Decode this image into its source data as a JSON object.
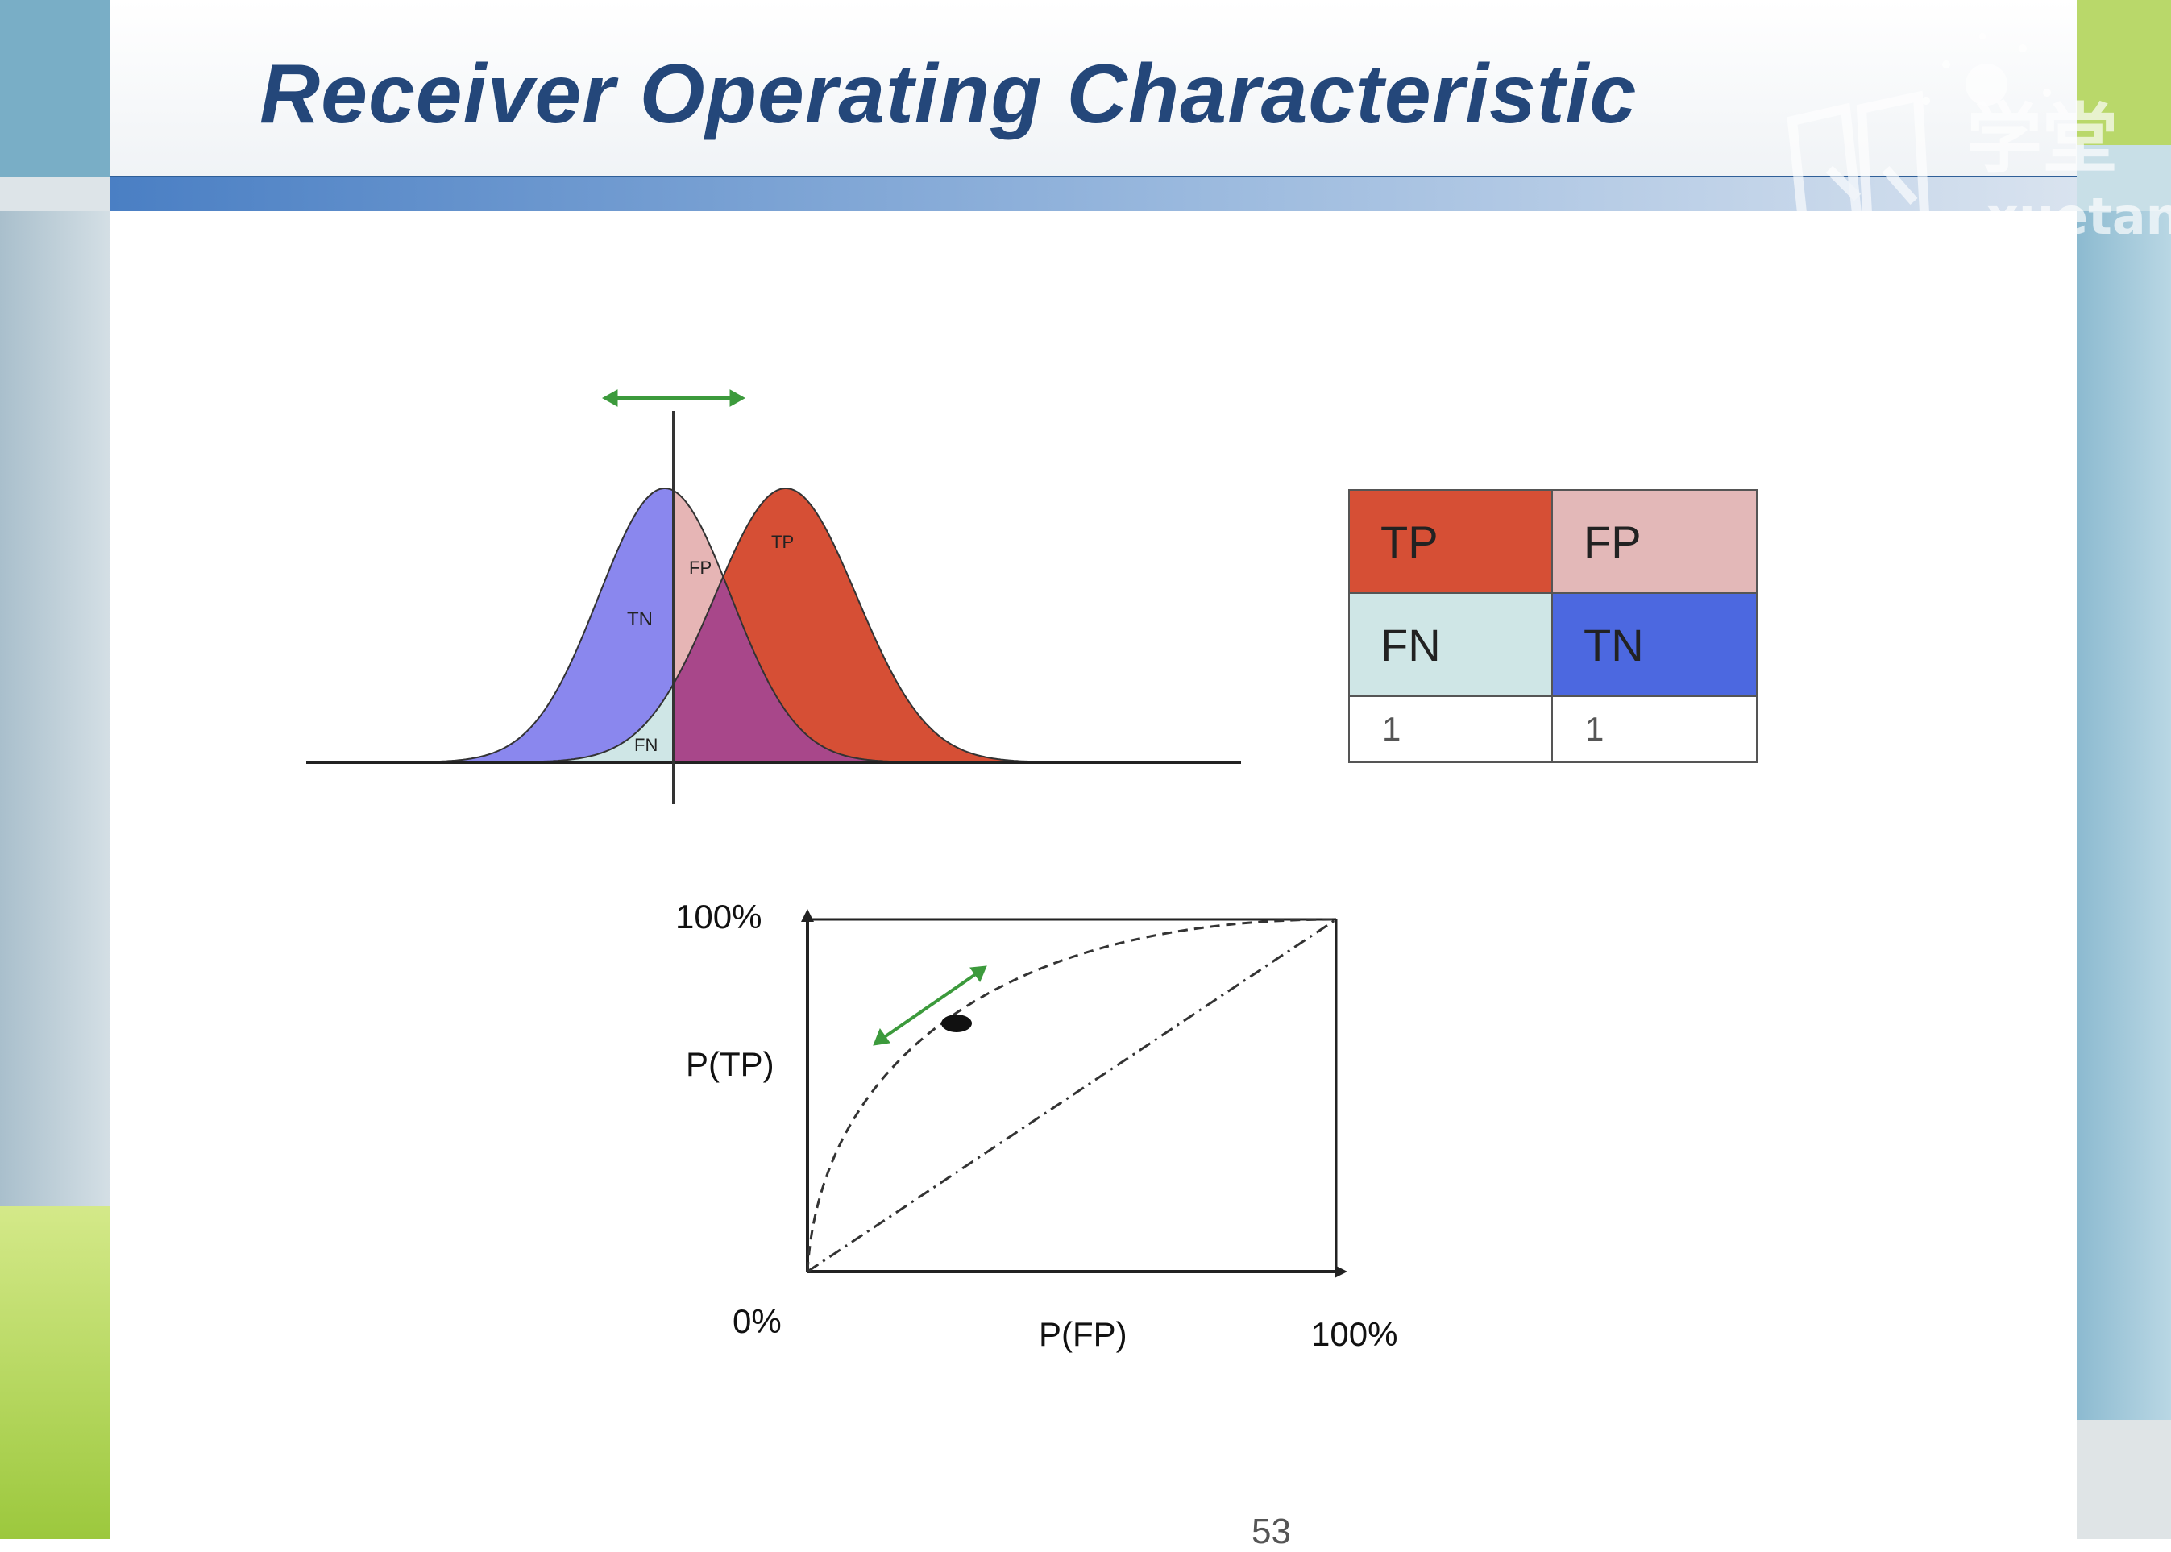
{
  "slide": {
    "title": "Receiver Operating Characteristic",
    "page_number": "53"
  },
  "watermark": {
    "icon": "book-logo-icon",
    "chinese": "学堂",
    "latin": "xuetan"
  },
  "distribution_diagram": {
    "region_labels": {
      "tn": "TN",
      "fp": "FP",
      "tp": "TP",
      "fn": "FN"
    },
    "colors": {
      "negative": "#8a87ee",
      "positive": "#d64f35",
      "overlap": "#a8478a",
      "fp": "#e6b5b5",
      "fn": "#cfe6e6",
      "arrow": "#3c9a3c"
    }
  },
  "confusion_table": {
    "cells": [
      {
        "label": "TP",
        "color": "#d64f35"
      },
      {
        "label": "FP",
        "color": "#e3b8b8"
      },
      {
        "label": "FN",
        "color": "#cfe6e6"
      },
      {
        "label": "TN",
        "color": "#4c68e0"
      }
    ],
    "totals": [
      "1",
      "1"
    ]
  },
  "roc_chart": {
    "y_top_label": "100%",
    "y_label": "P(TP)",
    "origin_label": "0%",
    "x_label": "P(FP)",
    "x_right_label": "100%"
  }
}
